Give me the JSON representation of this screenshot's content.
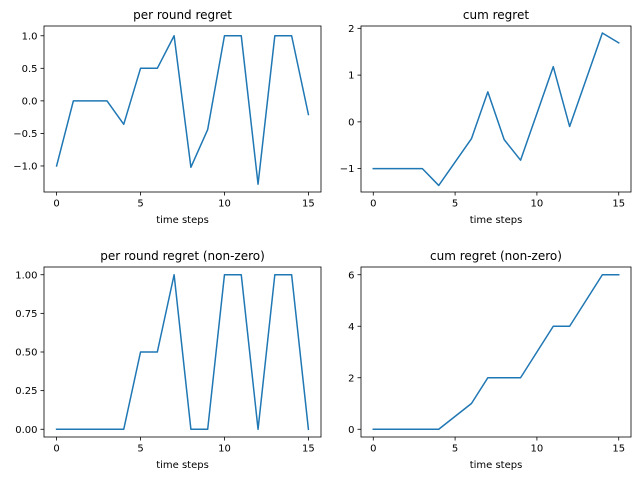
{
  "chart_data": [
    {
      "type": "line",
      "title": "per round regret",
      "xlabel": "time steps",
      "ylabel": "",
      "xlim": [
        -0.75,
        15.75
      ],
      "ylim": [
        -1.4,
        1.15
      ],
      "xticks": [
        0,
        5,
        10,
        15
      ],
      "yticks": [
        -1.0,
        -0.5,
        0.0,
        0.5,
        1.0
      ],
      "ytick_labels": [
        "−1.0",
        "−0.5",
        "0.0",
        "0.5",
        "1.0"
      ],
      "color": "#1f77b4",
      "series": [
        {
          "x": [
            0,
            1,
            2,
            3,
            4,
            5,
            6,
            7,
            8,
            9,
            10,
            11,
            12,
            13,
            14,
            15
          ],
          "values": [
            -1.0,
            0.0,
            0.0,
            0.0,
            -0.36,
            0.5,
            0.5,
            1.0,
            -1.02,
            -0.44,
            1.0,
            1.0,
            -1.28,
            1.0,
            1.0,
            -0.21
          ]
        }
      ]
    },
    {
      "type": "line",
      "title": "cum regret",
      "xlabel": "time steps",
      "ylabel": "",
      "xlim": [
        -0.75,
        15.75
      ],
      "ylim": [
        -1.5,
        2.05
      ],
      "xticks": [
        0,
        5,
        10,
        15
      ],
      "yticks": [
        -1,
        0,
        1,
        2
      ],
      "ytick_labels": [
        "−1",
        "0",
        "1",
        "2"
      ],
      "color": "#1f77b4",
      "series": [
        {
          "x": [
            0,
            1,
            2,
            3,
            4,
            5,
            6,
            7,
            8,
            9,
            10,
            11,
            12,
            13,
            14,
            15
          ],
          "values": [
            -1.0,
            -1.0,
            -1.0,
            -1.0,
            -1.36,
            -0.86,
            -0.36,
            0.64,
            -0.38,
            -0.82,
            0.18,
            1.18,
            -0.1,
            0.9,
            1.9,
            1.69
          ]
        }
      ]
    },
    {
      "type": "line",
      "title": "per round regret (non-zero)",
      "xlabel": "time steps",
      "ylabel": "",
      "xlim": [
        -0.75,
        15.75
      ],
      "ylim": [
        -0.05,
        1.05
      ],
      "xticks": [
        0,
        5,
        10,
        15
      ],
      "yticks": [
        0.0,
        0.25,
        0.5,
        0.75,
        1.0
      ],
      "ytick_labels": [
        "0.00",
        "0.25",
        "0.50",
        "0.75",
        "1.00"
      ],
      "color": "#1f77b4",
      "series": [
        {
          "x": [
            0,
            1,
            2,
            3,
            4,
            5,
            6,
            7,
            8,
            9,
            10,
            11,
            12,
            13,
            14,
            15
          ],
          "values": [
            0,
            0,
            0,
            0,
            0,
            0.5,
            0.5,
            1.0,
            0,
            0,
            1.0,
            1.0,
            0,
            1.0,
            1.0,
            0
          ]
        }
      ]
    },
    {
      "type": "line",
      "title": "cum regret (non-zero)",
      "xlabel": "time steps",
      "ylabel": "",
      "xlim": [
        -0.75,
        15.75
      ],
      "ylim": [
        -0.3,
        6.3
      ],
      "xticks": [
        0,
        5,
        10,
        15
      ],
      "yticks": [
        0,
        2,
        4,
        6
      ],
      "ytick_labels": [
        "0",
        "2",
        "4",
        "6"
      ],
      "color": "#1f77b4",
      "series": [
        {
          "x": [
            0,
            1,
            2,
            3,
            4,
            5,
            6,
            7,
            8,
            9,
            10,
            11,
            12,
            13,
            14,
            15
          ],
          "values": [
            0,
            0,
            0,
            0,
            0,
            0.5,
            1.0,
            2.0,
            2.0,
            2.0,
            3.0,
            4.0,
            4.0,
            5.0,
            6.0,
            6.0
          ]
        }
      ]
    }
  ]
}
